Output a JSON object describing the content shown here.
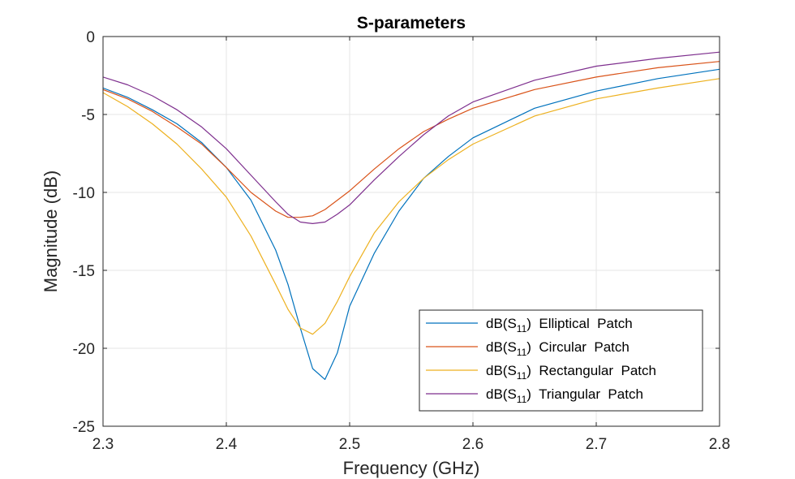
{
  "chart_data": {
    "type": "line",
    "title": "S-parameters",
    "xlabel": "Frequency (GHz)",
    "ylabel": "Magnitude (dB)",
    "xlim": [
      2.3,
      2.8
    ],
    "ylim": [
      -25,
      0
    ],
    "xticks": [
      "2.3",
      "2.4",
      "2.5",
      "2.6",
      "2.7",
      "2.8"
    ],
    "yticks": [
      "0",
      "-5",
      "-10",
      "-15",
      "-20",
      "-25"
    ],
    "grid": true,
    "legend_position": "bottom-right",
    "series": [
      {
        "name": "Elliptical Patch",
        "legend_prefix": "dB(S",
        "legend_sub": "11",
        "legend_suffix": ")",
        "color": "#0072BD",
        "x": [
          2.3,
          2.32,
          2.34,
          2.36,
          2.38,
          2.4,
          2.42,
          2.44,
          2.45,
          2.46,
          2.47,
          2.48,
          2.49,
          2.5,
          2.52,
          2.54,
          2.56,
          2.58,
          2.6,
          2.65,
          2.7,
          2.75,
          2.8
        ],
        "y": [
          -3.3,
          -3.9,
          -4.7,
          -5.6,
          -6.8,
          -8.4,
          -10.5,
          -13.7,
          -15.9,
          -18.7,
          -21.3,
          -22.0,
          -20.3,
          -17.3,
          -13.9,
          -11.2,
          -9.1,
          -7.7,
          -6.5,
          -4.6,
          -3.5,
          -2.7,
          -2.1
        ]
      },
      {
        "name": "Circular Patch",
        "legend_prefix": "dB(S",
        "legend_sub": "11",
        "legend_suffix": ")",
        "color": "#D95319",
        "x": [
          2.3,
          2.32,
          2.34,
          2.36,
          2.38,
          2.4,
          2.42,
          2.44,
          2.45,
          2.46,
          2.47,
          2.48,
          2.49,
          2.5,
          2.52,
          2.54,
          2.56,
          2.58,
          2.6,
          2.65,
          2.7,
          2.75,
          2.8
        ],
        "y": [
          -3.4,
          -4.0,
          -4.8,
          -5.8,
          -6.9,
          -8.4,
          -10.0,
          -11.2,
          -11.6,
          -11.6,
          -11.5,
          -11.1,
          -10.5,
          -9.9,
          -8.5,
          -7.2,
          -6.1,
          -5.3,
          -4.6,
          -3.4,
          -2.6,
          -2.0,
          -1.6
        ]
      },
      {
        "name": "Rectangular Patch",
        "legend_prefix": "dB(S",
        "legend_sub": "11",
        "legend_suffix": ")",
        "color": "#EDB120",
        "x": [
          2.3,
          2.32,
          2.34,
          2.36,
          2.38,
          2.4,
          2.42,
          2.44,
          2.45,
          2.46,
          2.47,
          2.48,
          2.49,
          2.5,
          2.52,
          2.54,
          2.56,
          2.58,
          2.6,
          2.65,
          2.7,
          2.75,
          2.8
        ],
        "y": [
          -3.6,
          -4.5,
          -5.6,
          -6.9,
          -8.5,
          -10.3,
          -12.8,
          -15.9,
          -17.5,
          -18.7,
          -19.1,
          -18.4,
          -17.0,
          -15.4,
          -12.6,
          -10.6,
          -9.1,
          -7.9,
          -6.9,
          -5.1,
          -4.0,
          -3.3,
          -2.7
        ]
      },
      {
        "name": "Triangular Patch",
        "legend_prefix": "dB(S",
        "legend_sub": "11",
        "legend_suffix": ")",
        "color": "#7E2F8E",
        "x": [
          2.3,
          2.32,
          2.34,
          2.36,
          2.38,
          2.4,
          2.42,
          2.44,
          2.45,
          2.46,
          2.47,
          2.48,
          2.49,
          2.5,
          2.52,
          2.54,
          2.56,
          2.58,
          2.6,
          2.65,
          2.7,
          2.75,
          2.8
        ],
        "y": [
          -2.6,
          -3.1,
          -3.8,
          -4.7,
          -5.8,
          -7.2,
          -8.9,
          -10.6,
          -11.4,
          -11.9,
          -12.0,
          -11.9,
          -11.4,
          -10.8,
          -9.2,
          -7.7,
          -6.3,
          -5.1,
          -4.2,
          -2.8,
          -1.9,
          -1.4,
          -1.0
        ]
      }
    ]
  }
}
